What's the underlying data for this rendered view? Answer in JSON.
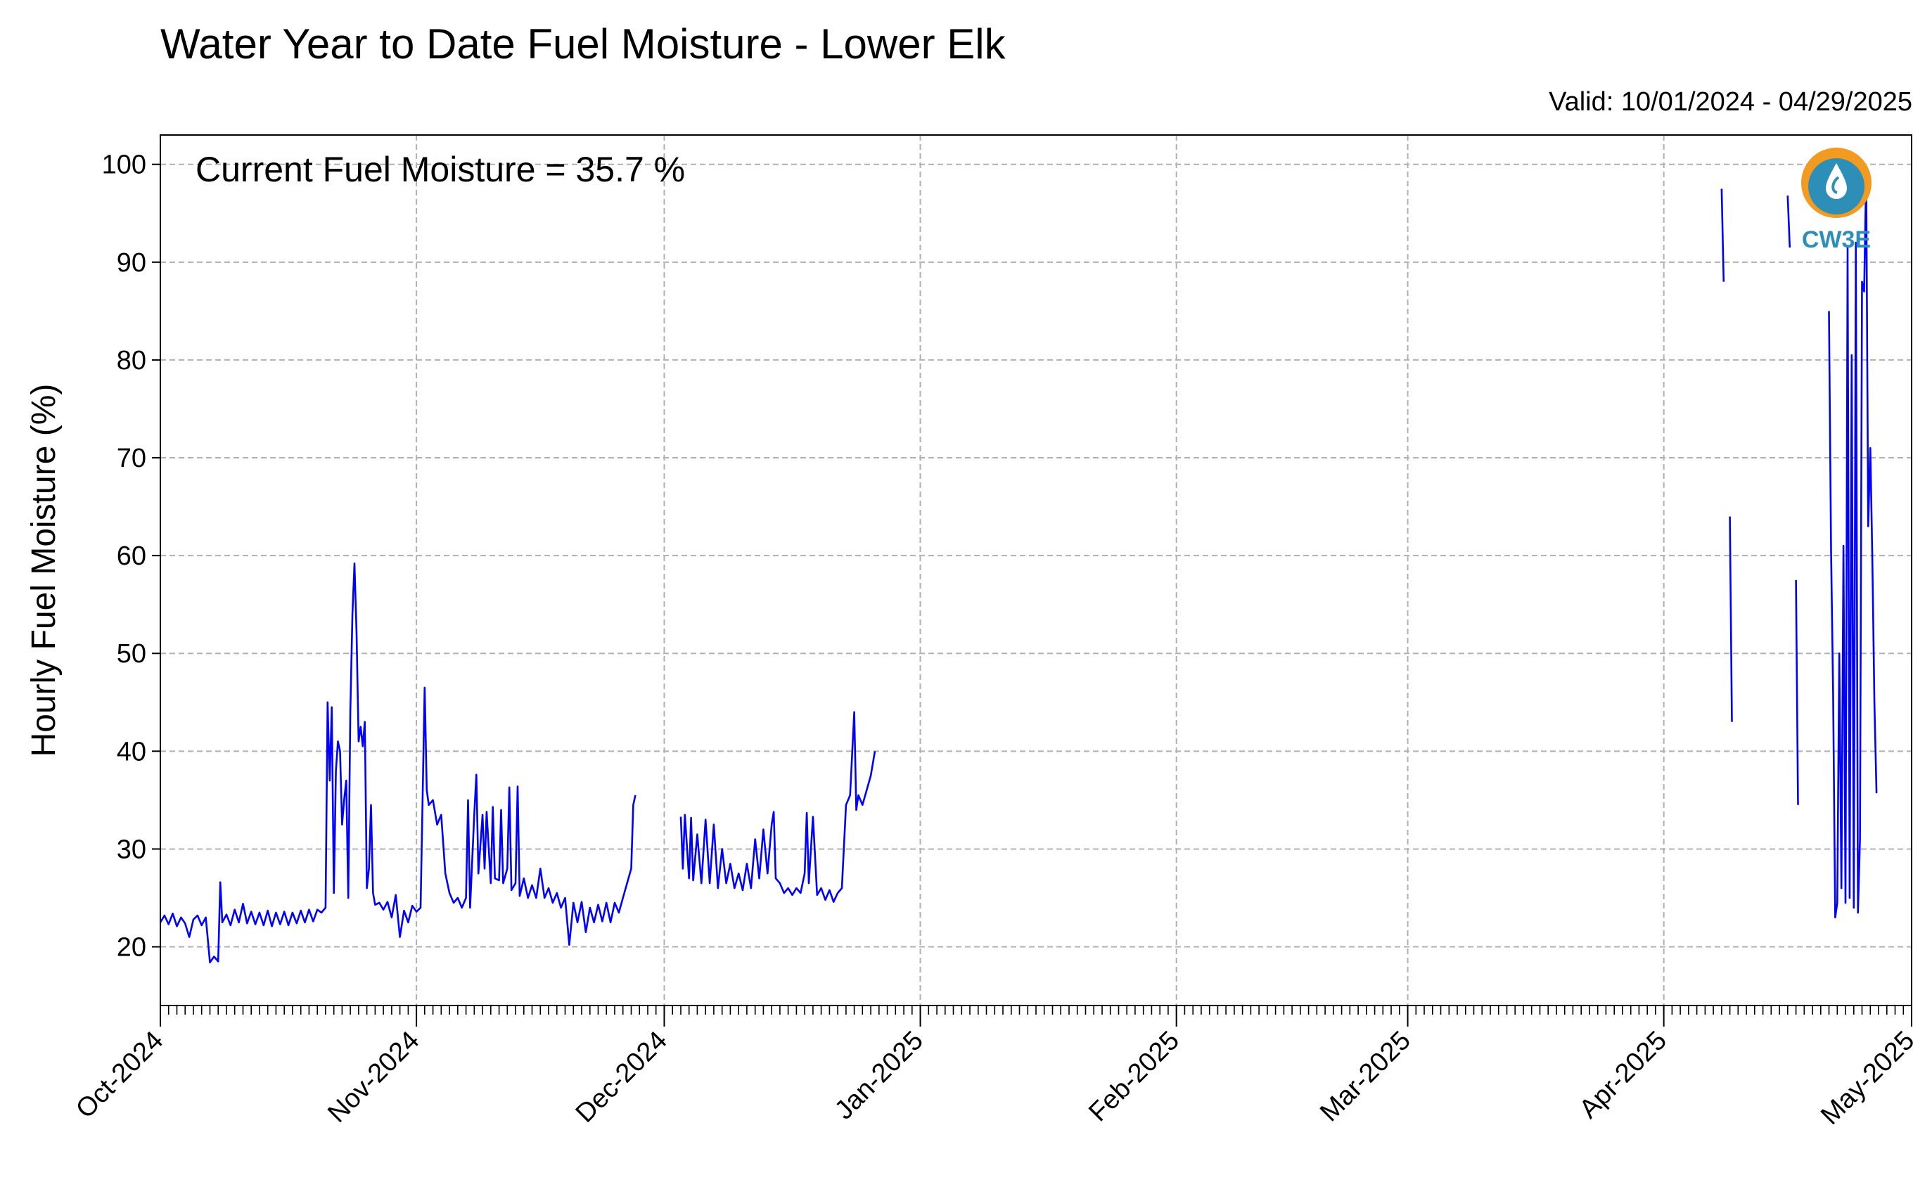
{
  "title": "Water Year to Date Fuel Moisture - Lower Elk",
  "valid_text": "Valid: 10/01/2024 - 04/29/2025",
  "logo": {
    "text": "CW3E",
    "icon": "cw3e-water-drop-logo",
    "colors": {
      "orange": "#f39a21",
      "blue": "#2d8fb8"
    }
  },
  "chart_data": {
    "type": "line",
    "title": "Water Year to Date Fuel Moisture - Lower Elk",
    "xlabel": "",
    "ylabel": "Hourly Fuel Moisture (%)",
    "annotation": "Current Fuel Moisture = 35.7 %",
    "line_color": "#0000ff",
    "grid": true,
    "xlim": [
      "2024-10-01",
      "2025-05-01"
    ],
    "ylim": [
      14,
      103
    ],
    "x_ticks": [
      "Oct-2024",
      "Nov-2024",
      "Dec-2024",
      "Jan-2025",
      "Feb-2025",
      "Mar-2025",
      "Apr-2025",
      "May-2025"
    ],
    "x_tick_dates": [
      "2024-10-01",
      "2024-11-01",
      "2024-12-01",
      "2025-01-01",
      "2025-02-01",
      "2025-03-01",
      "2025-04-01",
      "2025-05-01"
    ],
    "y_ticks": [
      "20",
      "30",
      "40",
      "50",
      "60",
      "70",
      "80",
      "90",
      "100"
    ],
    "y_tick_values": [
      20,
      30,
      40,
      50,
      60,
      70,
      80,
      90,
      100
    ],
    "series": [
      {
        "segments": [
          [
            [
              "2024-10-01T00",
              22.5
            ],
            [
              "2024-10-01T12",
              23.2
            ],
            [
              "2024-10-02T00",
              22.3
            ],
            [
              "2024-10-02T12",
              23.4
            ],
            [
              "2024-10-03T00",
              22.1
            ],
            [
              "2024-10-03T12",
              23.0
            ],
            [
              "2024-10-04T00",
              22.4
            ],
            [
              "2024-10-04T12",
              21.0
            ],
            [
              "2024-10-05T00",
              22.8
            ],
            [
              "2024-10-05T12",
              23.2
            ],
            [
              "2024-10-06T00",
              22.2
            ],
            [
              "2024-10-06T12",
              23.0
            ],
            [
              "2024-10-07T00",
              18.4
            ],
            [
              "2024-10-07T12",
              19.0
            ],
            [
              "2024-10-08T00",
              18.5
            ],
            [
              "2024-10-08T06",
              26.6
            ],
            [
              "2024-10-08T12",
              22.5
            ],
            [
              "2024-10-09T00",
              23.3
            ],
            [
              "2024-10-09T12",
              22.2
            ],
            [
              "2024-10-10T00",
              23.8
            ],
            [
              "2024-10-10T12",
              22.5
            ],
            [
              "2024-10-11T00",
              24.4
            ],
            [
              "2024-10-11T12",
              22.4
            ],
            [
              "2024-10-12T00",
              23.6
            ],
            [
              "2024-10-12T12",
              22.3
            ],
            [
              "2024-10-13T00",
              23.5
            ],
            [
              "2024-10-13T12",
              22.2
            ],
            [
              "2024-10-14T00",
              23.7
            ],
            [
              "2024-10-14T12",
              22.1
            ],
            [
              "2024-10-15T00",
              23.5
            ],
            [
              "2024-10-15T12",
              22.3
            ],
            [
              "2024-10-16T00",
              23.6
            ],
            [
              "2024-10-16T12",
              22.2
            ],
            [
              "2024-10-17T00",
              23.5
            ],
            [
              "2024-10-17T12",
              22.4
            ],
            [
              "2024-10-18T00",
              23.7
            ],
            [
              "2024-10-18T12",
              22.5
            ],
            [
              "2024-10-19T00",
              23.8
            ],
            [
              "2024-10-19T12",
              22.6
            ],
            [
              "2024-10-20T00",
              23.8
            ],
            [
              "2024-10-20T12",
              23.5
            ],
            [
              "2024-10-21T00",
              24.0
            ],
            [
              "2024-10-21T06",
              45.0
            ],
            [
              "2024-10-21T12",
              37.0
            ],
            [
              "2024-10-21T18",
              44.5
            ],
            [
              "2024-10-22T00",
              25.5
            ],
            [
              "2024-10-22T06",
              38.0
            ],
            [
              "2024-10-22T12",
              41.0
            ],
            [
              "2024-10-22T18",
              40.0
            ],
            [
              "2024-10-23T00",
              32.5
            ],
            [
              "2024-10-23T06",
              35.0
            ],
            [
              "2024-10-23T12",
              37.0
            ],
            [
              "2024-10-23T18",
              25.0
            ],
            [
              "2024-10-24T00",
              44.0
            ],
            [
              "2024-10-24T06",
              54.0
            ],
            [
              "2024-10-24T12",
              59.2
            ],
            [
              "2024-10-24T18",
              52.0
            ],
            [
              "2024-10-25T00",
              41.0
            ],
            [
              "2024-10-25T06",
              42.5
            ],
            [
              "2024-10-25T12",
              40.5
            ],
            [
              "2024-10-25T18",
              43.0
            ],
            [
              "2024-10-26T00",
              26.0
            ],
            [
              "2024-10-26T06",
              28.0
            ],
            [
              "2024-10-26T12",
              34.5
            ],
            [
              "2024-10-26T18",
              25.5
            ],
            [
              "2024-10-27T00",
              24.3
            ],
            [
              "2024-10-27T12",
              24.5
            ],
            [
              "2024-10-28T00",
              23.8
            ],
            [
              "2024-10-28T12",
              24.6
            ],
            [
              "2024-10-29T00",
              23.0
            ],
            [
              "2024-10-29T12",
              25.3
            ],
            [
              "2024-10-30T00",
              21.0
            ],
            [
              "2024-10-30T12",
              23.7
            ],
            [
              "2024-10-31T00",
              22.5
            ],
            [
              "2024-10-31T12",
              24.2
            ],
            [
              "2024-11-01T00",
              23.6
            ],
            [
              "2024-11-01T12",
              24.0
            ],
            [
              "2024-11-02T00",
              46.5
            ],
            [
              "2024-11-02T06",
              36.0
            ],
            [
              "2024-11-02T12",
              34.5
            ],
            [
              "2024-11-03T00",
              35.0
            ],
            [
              "2024-11-03T12",
              32.5
            ],
            [
              "2024-11-04T00",
              33.5
            ],
            [
              "2024-11-04T12",
              27.5
            ],
            [
              "2024-11-05T00",
              25.5
            ],
            [
              "2024-11-05T12",
              24.5
            ],
            [
              "2024-11-06T00",
              25.0
            ],
            [
              "2024-11-06T12",
              24.0
            ],
            [
              "2024-11-07T00",
              25.0
            ],
            [
              "2024-11-07T06",
              35.0
            ],
            [
              "2024-11-07T12",
              24.0
            ],
            [
              "2024-11-08T00",
              33.5
            ],
            [
              "2024-11-08T06",
              37.6
            ],
            [
              "2024-11-08T12",
              27.5
            ],
            [
              "2024-11-09T00",
              33.5
            ],
            [
              "2024-11-09T06",
              28.0
            ],
            [
              "2024-11-09T12",
              33.8
            ],
            [
              "2024-11-10T00",
              26.5
            ],
            [
              "2024-11-10T06",
              34.3
            ],
            [
              "2024-11-10T12",
              27.0
            ],
            [
              "2024-11-11T00",
              26.8
            ],
            [
              "2024-11-11T06",
              34.0
            ],
            [
              "2024-11-11T12",
              26.5
            ],
            [
              "2024-11-12T00",
              28.0
            ],
            [
              "2024-11-12T06",
              36.3
            ],
            [
              "2024-11-12T12",
              25.8
            ],
            [
              "2024-11-13T00",
              26.5
            ],
            [
              "2024-11-13T06",
              36.4
            ],
            [
              "2024-11-13T12",
              25.2
            ],
            [
              "2024-11-14T00",
              27.0
            ],
            [
              "2024-11-14T12",
              25.0
            ],
            [
              "2024-11-15T00",
              26.3
            ],
            [
              "2024-11-15T12",
              25.0
            ],
            [
              "2024-11-16T00",
              28.0
            ],
            [
              "2024-11-16T12",
              25.0
            ],
            [
              "2024-11-17T00",
              26.0
            ],
            [
              "2024-11-17T12",
              24.5
            ],
            [
              "2024-11-18T00",
              25.5
            ],
            [
              "2024-11-18T12",
              24.0
            ],
            [
              "2024-11-19T00",
              25.0
            ],
            [
              "2024-11-19T12",
              20.2
            ],
            [
              "2024-11-20T00",
              24.5
            ],
            [
              "2024-11-20T12",
              22.5
            ],
            [
              "2024-11-21T00",
              24.6
            ],
            [
              "2024-11-21T12",
              21.5
            ],
            [
              "2024-11-22T00",
              24.0
            ],
            [
              "2024-11-22T12",
              22.5
            ],
            [
              "2024-11-23T00",
              24.3
            ],
            [
              "2024-11-23T12",
              22.6
            ],
            [
              "2024-11-24T00",
              24.5
            ],
            [
              "2024-11-24T12",
              22.5
            ],
            [
              "2024-11-25T00",
              24.5
            ],
            [
              "2024-11-25T12",
              23.5
            ],
            [
              "2024-11-26T00",
              25.0
            ],
            [
              "2024-11-26T12",
              26.5
            ],
            [
              "2024-11-27T00",
              28.0
            ],
            [
              "2024-11-27T06",
              34.5
            ],
            [
              "2024-11-27T12",
              35.5
            ]
          ],
          [
            [
              "2024-12-03T00",
              33.3
            ],
            [
              "2024-12-03T06",
              28.0
            ],
            [
              "2024-12-03T12",
              33.5
            ],
            [
              "2024-12-04T00",
              27.0
            ],
            [
              "2024-12-04T06",
              33.2
            ],
            [
              "2024-12-04T12",
              26.8
            ],
            [
              "2024-12-05T00",
              31.5
            ],
            [
              "2024-12-05T12",
              26.5
            ],
            [
              "2024-12-06T00",
              33.0
            ],
            [
              "2024-12-06T12",
              26.5
            ],
            [
              "2024-12-07T00",
              32.5
            ],
            [
              "2024-12-07T12",
              26.0
            ],
            [
              "2024-12-08T00",
              30.0
            ],
            [
              "2024-12-08T12",
              26.5
            ],
            [
              "2024-12-09T00",
              28.5
            ],
            [
              "2024-12-09T12",
              26.0
            ],
            [
              "2024-12-10T00",
              27.5
            ],
            [
              "2024-12-10T12",
              25.8
            ],
            [
              "2024-12-11T00",
              28.5
            ],
            [
              "2024-12-11T12",
              26.0
            ],
            [
              "2024-12-12T00",
              31.0
            ],
            [
              "2024-12-12T12",
              27.0
            ],
            [
              "2024-12-13T00",
              32.0
            ],
            [
              "2024-12-13T12",
              27.5
            ],
            [
              "2024-12-14T00",
              32.5
            ],
            [
              "2024-12-14T06",
              33.8
            ],
            [
              "2024-12-14T12",
              27.0
            ],
            [
              "2024-12-15T00",
              26.5
            ],
            [
              "2024-12-15T12",
              25.5
            ],
            [
              "2024-12-16T00",
              26.0
            ],
            [
              "2024-12-16T12",
              25.3
            ],
            [
              "2024-12-17T00",
              26.0
            ],
            [
              "2024-12-17T12",
              25.5
            ],
            [
              "2024-12-18T00",
              27.5
            ],
            [
              "2024-12-18T06",
              33.7
            ],
            [
              "2024-12-18T12",
              26.5
            ],
            [
              "2024-12-19T00",
              33.3
            ],
            [
              "2024-12-19T12",
              25.3
            ],
            [
              "2024-12-20T00",
              26.0
            ],
            [
              "2024-12-20T12",
              24.8
            ],
            [
              "2024-12-21T00",
              25.8
            ],
            [
              "2024-12-21T12",
              24.6
            ],
            [
              "2024-12-22T00",
              25.5
            ],
            [
              "2024-12-22T12",
              26.0
            ],
            [
              "2024-12-23T00",
              34.5
            ],
            [
              "2024-12-23T12",
              35.5
            ],
            [
              "2024-12-24T00",
              44.0
            ],
            [
              "2024-12-24T06",
              34.0
            ],
            [
              "2024-12-24T12",
              35.5
            ],
            [
              "2024-12-25T00",
              34.5
            ],
            [
              "2024-12-25T12",
              36.0
            ],
            [
              "2024-12-26T00",
              37.5
            ],
            [
              "2024-12-26T12",
              40.0
            ]
          ],
          [
            [
              "2025-04-08T00",
              97.5
            ],
            [
              "2025-04-08T06",
              88.0
            ]
          ],
          [
            [
              "2025-04-09T00",
              64.0
            ],
            [
              "2025-04-09T06",
              43.0
            ]
          ],
          [
            [
              "2025-04-16T00",
              96.8
            ],
            [
              "2025-04-16T06",
              91.5
            ]
          ],
          [
            [
              "2025-04-17T00",
              57.5
            ],
            [
              "2025-04-17T06",
              34.5
            ]
          ],
          [
            [
              "2025-04-21T00",
              85.0
            ],
            [
              "2025-04-21T06",
              60.5
            ],
            [
              "2025-04-21T12",
              46.0
            ],
            [
              "2025-04-21T18",
              23.0
            ],
            [
              "2025-04-22T00",
              24.5
            ],
            [
              "2025-04-22T06",
              50.0
            ],
            [
              "2025-04-22T12",
              26.0
            ],
            [
              "2025-04-22T18",
              61.0
            ],
            [
              "2025-04-23T00",
              24.5
            ],
            [
              "2025-04-23T06",
              91.5
            ],
            [
              "2025-04-23T12",
              25.0
            ],
            [
              "2025-04-23T18",
              80.5
            ],
            [
              "2025-04-24T00",
              24.0
            ],
            [
              "2025-04-24T06",
              92.0
            ],
            [
              "2025-04-24T12",
              23.5
            ],
            [
              "2025-04-24T18",
              31.0
            ],
            [
              "2025-04-25T00",
              88.0
            ],
            [
              "2025-04-25T06",
              87.0
            ],
            [
              "2025-04-25T12",
              99.0
            ],
            [
              "2025-04-25T18",
              63.0
            ],
            [
              "2025-04-26T00",
              71.0
            ],
            [
              "2025-04-26T06",
              59.5
            ],
            [
              "2025-04-26T12",
              45.0
            ],
            [
              "2025-04-26T18",
              35.7
            ]
          ]
        ]
      }
    ]
  }
}
